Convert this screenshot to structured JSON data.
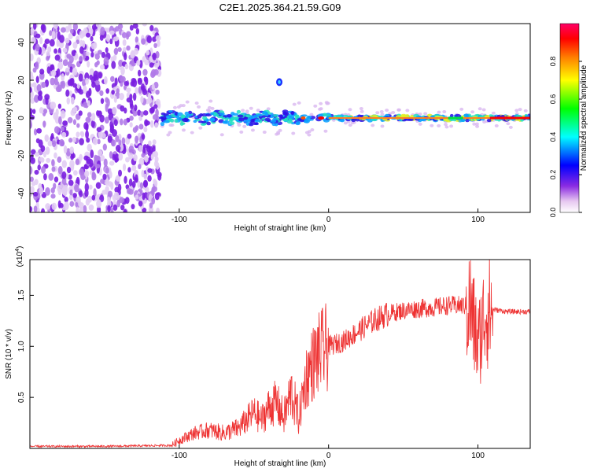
{
  "title": "C2E1.2025.364.21.59.G09",
  "chart_data": [
    {
      "type": "heatmap",
      "title": "C2E1.2025.364.21.59.G09",
      "xlabel": "Height of straight line (km)",
      "ylabel": "Frequency (Hz)",
      "xlim": [
        -200,
        135
      ],
      "ylim": [
        -50,
        50
      ],
      "xticks": [
        -100,
        0,
        100
      ],
      "xtick_labels": [
        "-100",
        "0",
        "100"
      ],
      "yticks": [
        -40,
        -20,
        0,
        20,
        40
      ],
      "ytick_labels": [
        "-40",
        "-20",
        "0",
        "20",
        "40"
      ],
      "colorbar": {
        "label": "Normalized spectral amplitude",
        "range": [
          0,
          1
        ],
        "ticks": [
          0.0,
          0.2,
          0.4,
          0.6,
          0.8
        ],
        "tick_labels": [
          "0.0",
          "0.2",
          "0.4",
          "0.6",
          "0.8"
        ],
        "colormap": [
          "#f3ddf6",
          "#8a2be2",
          "#0000ff",
          "#00ffff",
          "#00ff00",
          "#ffff00",
          "#ff8000",
          "#ff0000",
          "#ff00aa"
        ]
      },
      "features": {
        "noise_region_x": [
          -200,
          -113
        ],
        "signal_band_center_hz": 0,
        "signal_start_x": -113,
        "spot": {
          "x": -33,
          "y": 19
        }
      }
    },
    {
      "type": "line",
      "xlabel": "Height of straight line (km)",
      "ylabel": "SNR (10 * v/v)",
      "y_multiplier": "(x10",
      "y_multiplier_exp": "4",
      "y_multiplier_close": ")",
      "xlim": [
        -200,
        135
      ],
      "ylim": [
        0,
        1.85
      ],
      "xticks": [
        -100,
        0,
        100
      ],
      "xtick_labels": [
        "-100",
        "0",
        "100"
      ],
      "yticks": [
        0.5,
        1.0,
        1.5
      ],
      "ytick_labels": [
        "0.5",
        "1.0",
        "1.5"
      ],
      "color": "#ee3333",
      "series": [
        {
          "name": "SNR",
          "x": [
            -200,
            -150,
            -105,
            -100,
            -90,
            -80,
            -70,
            -60,
            -50,
            -45,
            -40,
            -35,
            -30,
            -25,
            -20,
            -15,
            -10,
            -5,
            0,
            10,
            20,
            30,
            40,
            50,
            60,
            70,
            80,
            90,
            95,
            100,
            105,
            110,
            120,
            135
          ],
          "y": [
            0.02,
            0.02,
            0.03,
            0.08,
            0.15,
            0.18,
            0.15,
            0.2,
            0.35,
            0.28,
            0.4,
            0.45,
            0.3,
            0.55,
            0.3,
            0.7,
            0.85,
            0.95,
            1.0,
            1.05,
            1.15,
            1.25,
            1.32,
            1.35,
            1.37,
            1.38,
            1.4,
            1.4,
            1.38,
            1.0,
            1.35,
            1.36,
            1.34,
            1.34
          ]
        }
      ]
    }
  ]
}
